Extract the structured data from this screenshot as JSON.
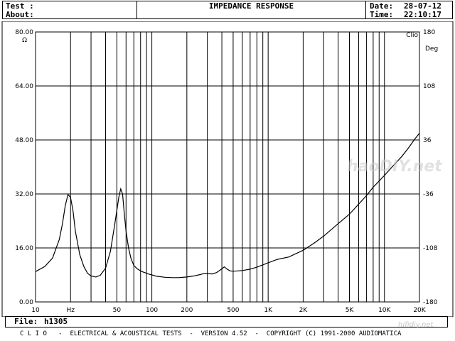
{
  "header": {
    "test_label": "Test :",
    "about_label": "About:",
    "title": "IMPEDANCE RESPONSE",
    "date_label": "Date:",
    "date_value": "28-07-12",
    "time_label": "Time:",
    "time_value": "22:10:17"
  },
  "footer": {
    "file_label": "File:",
    "file_value": "h1305",
    "bottom_line": "C L I O   -  ELECTRICAL & ACOUSTICAL TESTS  -  VERSION 4.52  -  COPYRIGHT (C) 1991-2000 AUDIOMATICA",
    "watermark_bottom": "hifidiy.net",
    "watermark_mid": "haoDIY.net"
  },
  "chart_data": {
    "type": "line",
    "title": "IMPEDANCE RESPONSE",
    "left_unit": "Ω",
    "right_unit": "Deg",
    "corner_label": "Clio",
    "x_scale": "log",
    "xlim": [
      10,
      20000
    ],
    "ylim": [
      0,
      80
    ],
    "y2lim": [
      -180,
      180
    ],
    "x_tick_labels": [
      "10",
      "Hz",
      "50",
      "100",
      "200",
      "500",
      "1K",
      "2K",
      "5K",
      "10K",
      "20K"
    ],
    "x_tick_values": [
      10,
      20,
      50,
      100,
      200,
      500,
      1000,
      2000,
      5000,
      10000,
      20000
    ],
    "y_tick_labels": [
      "0.00",
      "16.00",
      "32.00",
      "48.00",
      "64.00",
      "80.00"
    ],
    "y_tick_values": [
      0,
      16,
      32,
      48,
      64,
      80
    ],
    "y2_tick_labels": [
      "-180",
      "-108",
      "-36",
      "36",
      "108",
      "180"
    ],
    "grid": true,
    "series": [
      {
        "color": "#000000",
        "x": [
          10,
          12,
          14,
          16,
          17,
          18,
          19,
          20,
          21,
          22,
          24,
          26,
          28,
          30,
          33,
          36,
          40,
          44,
          48,
          52,
          54,
          56,
          58,
          60,
          63,
          66,
          70,
          75,
          80,
          85,
          90,
          95,
          100,
          110,
          130,
          150,
          170,
          200,
          230,
          260,
          280,
          300,
          330,
          360,
          400,
          420,
          440,
          470,
          500,
          550,
          600,
          700,
          800,
          900,
          1000,
          1200,
          1500,
          2000,
          2500,
          3000,
          4000,
          5000,
          6000,
          7000,
          8000,
          10000,
          12000,
          14000,
          16000,
          18000,
          20000
        ],
        "values": [
          9.0,
          10.5,
          13.0,
          18.5,
          23.0,
          28.5,
          31.8,
          31.0,
          27.0,
          21.0,
          14.0,
          10.5,
          8.5,
          7.7,
          7.4,
          7.9,
          10.0,
          15.0,
          23.0,
          31.0,
          33.5,
          32.0,
          26.0,
          21.0,
          16.0,
          13.0,
          10.8,
          9.8,
          9.2,
          8.8,
          8.5,
          8.2,
          8.0,
          7.6,
          7.3,
          7.2,
          7.2,
          7.4,
          7.7,
          8.1,
          8.4,
          8.4,
          8.3,
          8.7,
          9.8,
          10.4,
          9.8,
          9.2,
          9.1,
          9.2,
          9.3,
          9.7,
          10.3,
          11.0,
          11.6,
          12.6,
          13.3,
          15.3,
          17.5,
          19.5,
          23.2,
          26.0,
          29.0,
          31.5,
          34.0,
          37.5,
          40.5,
          43.0,
          45.5,
          48.0,
          50.0
        ]
      }
    ]
  }
}
